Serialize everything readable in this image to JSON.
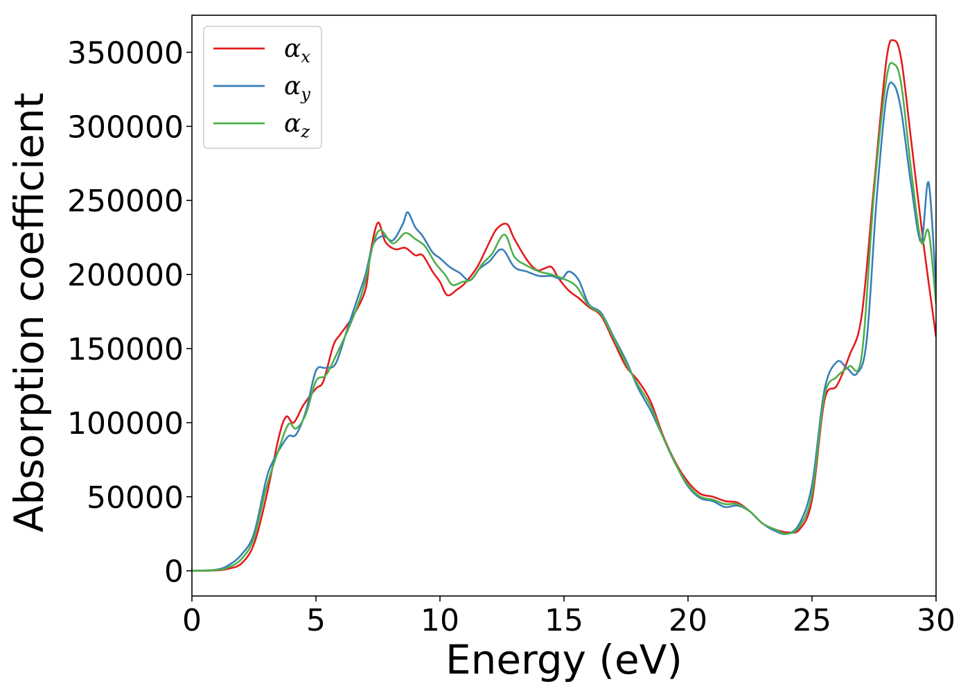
{
  "chart_data": {
    "type": "line",
    "title": "",
    "xlabel": "Energy (eV)",
    "ylabel": "Absorption coefficient",
    "xlim": [
      0,
      30
    ],
    "ylim": [
      -17000,
      375000
    ],
    "x_ticks": [
      "0",
      "5",
      "10",
      "15",
      "20",
      "25",
      "30"
    ],
    "y_ticks": [
      "0",
      "50000",
      "100000",
      "150000",
      "200000",
      "250000",
      "300000",
      "350000"
    ],
    "grid": false,
    "legend_position": "top-left",
    "series": [
      {
        "name": "α",
        "subscript": "x",
        "color": "#e41a1c",
        "points": [
          [
            0,
            0
          ],
          [
            1,
            300
          ],
          [
            1.5,
            1500
          ],
          [
            2,
            5000
          ],
          [
            2.5,
            18000
          ],
          [
            3,
            50000
          ],
          [
            3.5,
            90000
          ],
          [
            3.8,
            104000
          ],
          [
            4.1,
            100000
          ],
          [
            4.5,
            112000
          ],
          [
            5,
            123000
          ],
          [
            5.3,
            128000
          ],
          [
            5.7,
            152000
          ],
          [
            6,
            160000
          ],
          [
            6.5,
            172000
          ],
          [
            7,
            190000
          ],
          [
            7.2,
            215000
          ],
          [
            7.5,
            235000
          ],
          [
            7.8,
            222000
          ],
          [
            8.2,
            217000
          ],
          [
            8.6,
            218000
          ],
          [
            9,
            213000
          ],
          [
            9.3,
            213000
          ],
          [
            9.7,
            202000
          ],
          [
            10,
            195000
          ],
          [
            10.3,
            186000
          ],
          [
            10.7,
            190000
          ],
          [
            11,
            194000
          ],
          [
            11.5,
            205000
          ],
          [
            12,
            222000
          ],
          [
            12.3,
            231000
          ],
          [
            12.7,
            234000
          ],
          [
            13,
            224000
          ],
          [
            13.5,
            210000
          ],
          [
            13.9,
            203000
          ],
          [
            14.2,
            204000
          ],
          [
            14.5,
            205000
          ],
          [
            14.8,
            197000
          ],
          [
            15.2,
            189000
          ],
          [
            15.6,
            184000
          ],
          [
            16,
            178000
          ],
          [
            16.5,
            172000
          ],
          [
            17,
            155000
          ],
          [
            17.5,
            138000
          ],
          [
            18,
            128000
          ],
          [
            18.5,
            114000
          ],
          [
            19,
            91000
          ],
          [
            19.5,
            73000
          ],
          [
            20,
            60000
          ],
          [
            20.5,
            52000
          ],
          [
            21,
            50000
          ],
          [
            21.5,
            47000
          ],
          [
            22,
            46000
          ],
          [
            22.5,
            40000
          ],
          [
            23,
            32000
          ],
          [
            23.5,
            28000
          ],
          [
            24,
            26000
          ],
          [
            24.5,
            28000
          ],
          [
            25,
            48000
          ],
          [
            25.5,
            115000
          ],
          [
            26,
            125000
          ],
          [
            26.5,
            145000
          ],
          [
            27,
            172000
          ],
          [
            27.5,
            260000
          ],
          [
            28,
            345000
          ],
          [
            28.3,
            358000
          ],
          [
            28.6,
            345000
          ],
          [
            29,
            290000
          ],
          [
            29.5,
            220000
          ],
          [
            30,
            158000
          ]
        ]
      },
      {
        "name": "α",
        "subscript": "y",
        "color": "#377eb8",
        "points": [
          [
            0,
            0
          ],
          [
            1,
            800
          ],
          [
            1.5,
            4000
          ],
          [
            2,
            11000
          ],
          [
            2.5,
            25000
          ],
          [
            3,
            62000
          ],
          [
            3.3,
            75000
          ],
          [
            3.6,
            84000
          ],
          [
            3.9,
            91000
          ],
          [
            4.2,
            92000
          ],
          [
            4.6,
            108000
          ],
          [
            5,
            135000
          ],
          [
            5.4,
            137000
          ],
          [
            5.8,
            140000
          ],
          [
            6.3,
            165000
          ],
          [
            6.7,
            185000
          ],
          [
            7,
            200000
          ],
          [
            7.3,
            220000
          ],
          [
            7.7,
            226000
          ],
          [
            8.1,
            223000
          ],
          [
            8.5,
            234000
          ],
          [
            8.7,
            242000
          ],
          [
            9,
            232000
          ],
          [
            9.3,
            226000
          ],
          [
            9.7,
            215000
          ],
          [
            10,
            211000
          ],
          [
            10.4,
            205000
          ],
          [
            10.8,
            201000
          ],
          [
            11.2,
            196000
          ],
          [
            11.6,
            204000
          ],
          [
            12,
            209000
          ],
          [
            12.5,
            217000
          ],
          [
            13,
            205000
          ],
          [
            13.5,
            202000
          ],
          [
            14,
            199000
          ],
          [
            14.5,
            199000
          ],
          [
            14.9,
            197000
          ],
          [
            15.2,
            202000
          ],
          [
            15.6,
            196000
          ],
          [
            16,
            180000
          ],
          [
            16.5,
            174000
          ],
          [
            17,
            158000
          ],
          [
            17.5,
            142000
          ],
          [
            18,
            123000
          ],
          [
            18.5,
            108000
          ],
          [
            19,
            90000
          ],
          [
            19.5,
            72000
          ],
          [
            20,
            57000
          ],
          [
            20.5,
            49000
          ],
          [
            21,
            47000
          ],
          [
            21.5,
            43000
          ],
          [
            22,
            44000
          ],
          [
            22.5,
            40000
          ],
          [
            23,
            32000
          ],
          [
            23.5,
            27000
          ],
          [
            24,
            25000
          ],
          [
            24.5,
            32000
          ],
          [
            25,
            58000
          ],
          [
            25.5,
            122000
          ],
          [
            26,
            141000
          ],
          [
            26.4,
            137000
          ],
          [
            26.8,
            133000
          ],
          [
            27.2,
            155000
          ],
          [
            27.6,
            250000
          ],
          [
            28,
            320000
          ],
          [
            28.3,
            328000
          ],
          [
            28.6,
            310000
          ],
          [
            29,
            260000
          ],
          [
            29.4,
            222000
          ],
          [
            29.7,
            262000
          ],
          [
            30,
            190000
          ]
        ]
      },
      {
        "name": "α",
        "subscript": "z",
        "color": "#4daf4a",
        "points": [
          [
            0,
            0
          ],
          [
            1,
            500
          ],
          [
            1.5,
            2500
          ],
          [
            2,
            8000
          ],
          [
            2.5,
            22000
          ],
          [
            3,
            56000
          ],
          [
            3.5,
            82000
          ],
          [
            3.9,
            99000
          ],
          [
            4.2,
            96000
          ],
          [
            4.6,
            106000
          ],
          [
            5,
            128000
          ],
          [
            5.4,
            132000
          ],
          [
            5.8,
            145000
          ],
          [
            6.3,
            163000
          ],
          [
            6.7,
            180000
          ],
          [
            7,
            196000
          ],
          [
            7.3,
            220000
          ],
          [
            7.6,
            230000
          ],
          [
            8.1,
            221000
          ],
          [
            8.6,
            228000
          ],
          [
            9,
            224000
          ],
          [
            9.4,
            219000
          ],
          [
            9.8,
            208000
          ],
          [
            10.2,
            200000
          ],
          [
            10.5,
            193000
          ],
          [
            10.9,
            195000
          ],
          [
            11.3,
            197000
          ],
          [
            11.7,
            207000
          ],
          [
            12.1,
            214000
          ],
          [
            12.6,
            227000
          ],
          [
            13,
            212000
          ],
          [
            13.5,
            206000
          ],
          [
            14,
            202000
          ],
          [
            14.5,
            200000
          ],
          [
            15,
            197000
          ],
          [
            15.5,
            192000
          ],
          [
            16,
            179000
          ],
          [
            16.5,
            173000
          ],
          [
            17,
            157000
          ],
          [
            17.5,
            140000
          ],
          [
            18,
            125000
          ],
          [
            18.5,
            111000
          ],
          [
            19,
            90000
          ],
          [
            19.5,
            72000
          ],
          [
            20,
            58000
          ],
          [
            20.5,
            50000
          ],
          [
            21,
            48000
          ],
          [
            21.5,
            45000
          ],
          [
            22,
            45000
          ],
          [
            22.5,
            40000
          ],
          [
            23,
            32000
          ],
          [
            23.5,
            28000
          ],
          [
            24,
            25000
          ],
          [
            24.5,
            30000
          ],
          [
            25,
            52000
          ],
          [
            25.5,
            118000
          ],
          [
            26,
            131000
          ],
          [
            26.5,
            138000
          ],
          [
            27,
            145000
          ],
          [
            27.5,
            255000
          ],
          [
            28,
            332000
          ],
          [
            28.3,
            342000
          ],
          [
            28.6,
            328000
          ],
          [
            29,
            270000
          ],
          [
            29.4,
            222000
          ],
          [
            29.7,
            229000
          ],
          [
            30,
            180000
          ]
        ]
      }
    ]
  }
}
